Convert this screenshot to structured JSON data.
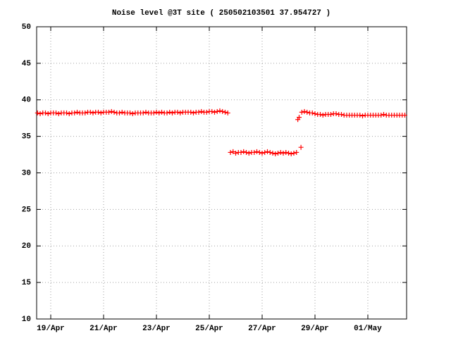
{
  "chart_data": {
    "type": "scatter",
    "title": "Noise level @3T site ( 250502103501 37.954727 )",
    "color": "#ff0000",
    "grid": true,
    "xlim": [
      18.467,
      32.467
    ],
    "ylim": [
      10,
      50
    ],
    "yticks": [
      10,
      15,
      20,
      25,
      30,
      35,
      40,
      45,
      50
    ],
    "xticks": [
      {
        "value": 19,
        "label": "19/Apr"
      },
      {
        "value": 21,
        "label": "21/Apr"
      },
      {
        "value": 23,
        "label": "23/Apr"
      },
      {
        "value": 25,
        "label": "25/Apr"
      },
      {
        "value": 27,
        "label": "27/Apr"
      },
      {
        "value": 29,
        "label": "29/Apr"
      },
      {
        "value": 31,
        "label": "01/May"
      }
    ],
    "x": [
      18.5,
      18.6,
      18.7,
      18.8,
      18.9,
      19.0,
      19.1,
      19.2,
      19.3,
      19.4,
      19.5,
      19.6,
      19.7,
      19.8,
      19.9,
      20.0,
      20.1,
      20.2,
      20.3,
      20.4,
      20.5,
      20.6,
      20.7,
      20.8,
      20.9,
      21.0,
      21.1,
      21.2,
      21.3,
      21.4,
      21.5,
      21.6,
      21.7,
      21.8,
      21.9,
      22.0,
      22.1,
      22.2,
      22.3,
      22.4,
      22.5,
      22.6,
      22.7,
      22.8,
      22.9,
      23.0,
      23.1,
      23.2,
      23.3,
      23.4,
      23.5,
      23.6,
      23.7,
      23.8,
      23.9,
      24.0,
      24.1,
      24.2,
      24.3,
      24.4,
      24.5,
      24.6,
      24.7,
      24.8,
      24.9,
      25.0,
      25.1,
      25.2,
      25.3,
      25.4,
      25.5,
      25.6,
      25.7,
      25.8,
      25.9,
      26.0,
      26.1,
      26.2,
      26.3,
      26.4,
      26.5,
      26.6,
      26.7,
      26.8,
      26.9,
      27.0,
      27.1,
      27.2,
      27.3,
      27.4,
      27.5,
      27.6,
      27.7,
      27.8,
      27.9,
      28.0,
      28.1,
      28.2,
      28.3,
      28.35,
      28.4,
      28.47,
      28.5,
      28.6,
      28.7,
      28.8,
      28.9,
      29.0,
      29.1,
      29.2,
      29.3,
      29.4,
      29.5,
      29.6,
      29.7,
      29.8,
      29.9,
      30.0,
      30.1,
      30.2,
      30.3,
      30.4,
      30.5,
      30.6,
      30.7,
      30.8,
      30.9,
      31.0,
      31.1,
      31.2,
      31.3,
      31.4,
      31.5,
      31.6,
      31.7,
      31.8,
      31.9,
      32.0,
      32.1,
      32.2,
      32.3,
      32.4
    ],
    "values": [
      38.2,
      38.1,
      38.2,
      38.2,
      38.1,
      38.2,
      38.2,
      38.2,
      38.1,
      38.2,
      38.2,
      38.2,
      38.1,
      38.2,
      38.2,
      38.3,
      38.2,
      38.2,
      38.2,
      38.3,
      38.3,
      38.2,
      38.3,
      38.3,
      38.2,
      38.3,
      38.3,
      38.3,
      38.4,
      38.3,
      38.2,
      38.2,
      38.3,
      38.2,
      38.2,
      38.2,
      38.1,
      38.2,
      38.2,
      38.2,
      38.2,
      38.3,
      38.2,
      38.2,
      38.2,
      38.3,
      38.2,
      38.3,
      38.2,
      38.2,
      38.3,
      38.2,
      38.3,
      38.3,
      38.2,
      38.3,
      38.3,
      38.3,
      38.3,
      38.2,
      38.3,
      38.3,
      38.4,
      38.3,
      38.3,
      38.4,
      38.4,
      38.3,
      38.4,
      38.5,
      38.4,
      38.3,
      38.2,
      32.8,
      32.9,
      32.7,
      32.8,
      32.8,
      32.9,
      32.8,
      32.7,
      32.8,
      32.8,
      32.9,
      32.8,
      32.7,
      32.8,
      32.9,
      32.8,
      32.7,
      32.6,
      32.7,
      32.8,
      32.7,
      32.8,
      32.7,
      32.6,
      32.7,
      32.8,
      37.3,
      37.6,
      33.5,
      38.3,
      38.4,
      38.3,
      38.2,
      38.2,
      38.1,
      38.0,
      38.0,
      37.9,
      38.0,
      38.0,
      38.0,
      38.1,
      38.1,
      38.0,
      38.0,
      37.9,
      37.9,
      37.9,
      37.9,
      37.9,
      37.9,
      37.9,
      37.8,
      37.9,
      37.9,
      37.9,
      37.9,
      37.9,
      37.9,
      37.9,
      38.0,
      37.9,
      37.9,
      37.9,
      37.9,
      37.9,
      37.9,
      37.9,
      37.9
    ]
  }
}
